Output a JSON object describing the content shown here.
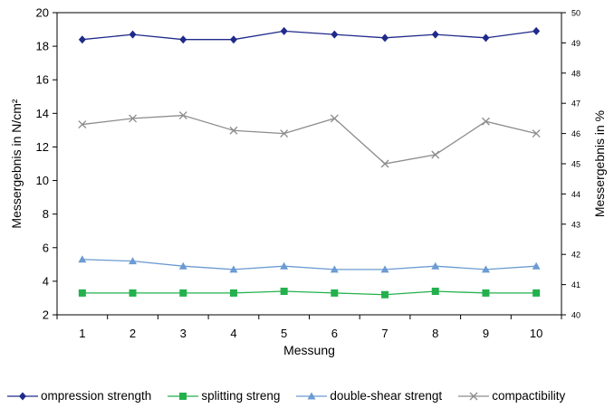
{
  "chart_data": {
    "type": "line",
    "title": "",
    "xlabel": "Messung",
    "ylabel": "Messergebnis in N/cm²",
    "y2label": "Messergebnis in %",
    "x": [
      1,
      2,
      3,
      4,
      5,
      6,
      7,
      8,
      9,
      10
    ],
    "ylim": [
      2,
      20
    ],
    "yticks": [
      2,
      4,
      6,
      8,
      10,
      12,
      14,
      16,
      18,
      20
    ],
    "y2lim": [
      40,
      50
    ],
    "y2ticks": [
      40,
      41,
      42,
      43,
      44,
      45,
      46,
      47,
      48,
      49,
      50
    ],
    "grid": false,
    "legend_position": "bottom",
    "series": [
      {
        "name": "compression strength",
        "legend_text": "ompression strength",
        "axis": "left",
        "color": "#1f2a8a",
        "marker": "diamond",
        "values": [
          18.4,
          18.7,
          18.4,
          18.4,
          18.9,
          18.7,
          18.5,
          18.7,
          18.5,
          18.9
        ]
      },
      {
        "name": "splitting strength",
        "legend_text": "splitting streng",
        "axis": "left",
        "color": "#22b14c",
        "marker": "square",
        "values": [
          3.3,
          3.3,
          3.3,
          3.3,
          3.4,
          3.3,
          3.2,
          3.4,
          3.3,
          3.3
        ]
      },
      {
        "name": "double-shear strength",
        "legend_text": "double-shear strengt",
        "axis": "left",
        "color": "#6b9bd2",
        "marker": "triangle",
        "values": [
          5.3,
          5.2,
          4.9,
          4.7,
          4.9,
          4.7,
          4.7,
          4.9,
          4.7,
          4.9
        ]
      },
      {
        "name": "compactibility",
        "legend_text": "compactibility",
        "axis": "right",
        "color": "#8c8c8c",
        "marker": "x",
        "values": [
          46.3,
          46.5,
          46.6,
          46.1,
          46.0,
          46.5,
          45.0,
          45.3,
          46.4,
          46.0
        ]
      }
    ]
  }
}
